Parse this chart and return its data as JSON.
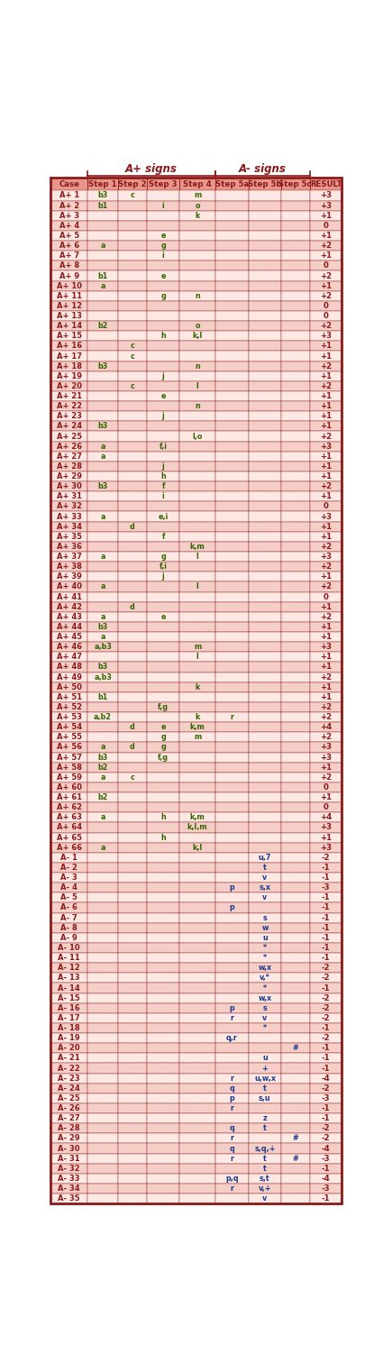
{
  "title_aplus": "A+ signs",
  "title_aminus": "A- signs",
  "col_headers": [
    "Case",
    "Step 1",
    "Step 2",
    "Step 3",
    "Step 4",
    "Step 5a",
    "Step 5b",
    "Step 5c",
    "RESULT"
  ],
  "bg_color_header": "#e8968a",
  "bg_color_even": "#fde8e4",
  "bg_color_odd": "#f5cec8",
  "border_color": "#8b1a1a",
  "text_color_case": "#8b1a1a",
  "text_color_green": "#336600",
  "text_color_blue": "#1a3a8b",
  "rows": [
    [
      "A+ 1",
      "b3",
      "c",
      "",
      "m",
      "",
      "",
      "",
      "+3"
    ],
    [
      "A+ 2",
      "b1",
      "",
      "i",
      "o",
      "",
      "",
      "",
      "+3"
    ],
    [
      "A+ 3",
      "",
      "",
      "",
      "k",
      "",
      "",
      "",
      "+1"
    ],
    [
      "A+ 4",
      "",
      "",
      "",
      "",
      "",
      "",
      "",
      "0"
    ],
    [
      "A+ 5",
      "",
      "",
      "e",
      "",
      "",
      "",
      "",
      "+1"
    ],
    [
      "A+ 6",
      "a",
      "",
      "g",
      "",
      "",
      "",
      "",
      "+2"
    ],
    [
      "A+ 7",
      "",
      "",
      "i",
      "",
      "",
      "",
      "",
      "+1"
    ],
    [
      "A+ 8",
      "",
      "",
      "",
      "",
      "",
      "",
      "",
      "0"
    ],
    [
      "A+ 9",
      "b1",
      "",
      "e",
      "",
      "",
      "",
      "",
      "+2"
    ],
    [
      "A+ 10",
      "a",
      "",
      "",
      "",
      "",
      "",
      "",
      "+1"
    ],
    [
      "A+ 11",
      "",
      "",
      "g",
      "n",
      "",
      "",
      "",
      "+2"
    ],
    [
      "A+ 12",
      "",
      "",
      "",
      "",
      "",
      "",
      "",
      "0"
    ],
    [
      "A+ 13",
      "",
      "",
      "",
      "",
      "",
      "",
      "",
      "0"
    ],
    [
      "A+ 14",
      "b2",
      "",
      "",
      "o",
      "",
      "",
      "",
      "+2"
    ],
    [
      "A+ 15",
      "",
      "",
      "h",
      "k,l",
      "",
      "",
      "",
      "+3"
    ],
    [
      "A+ 16",
      "",
      "c",
      "",
      "",
      "",
      "",
      "",
      "+1"
    ],
    [
      "A+ 17",
      "",
      "c",
      "",
      "",
      "",
      "",
      "",
      "+1"
    ],
    [
      "A+ 18",
      "b3",
      "",
      "",
      "n",
      "",
      "",
      "",
      "+2"
    ],
    [
      "A+ 19",
      "",
      "",
      "j",
      "",
      "",
      "",
      "",
      "+1"
    ],
    [
      "A+ 20",
      "",
      "c",
      "",
      "l",
      "",
      "",
      "",
      "+2"
    ],
    [
      "A+ 21",
      "",
      "",
      "e",
      "",
      "",
      "",
      "",
      "+1"
    ],
    [
      "A+ 22",
      "",
      "",
      "",
      "n",
      "",
      "",
      "",
      "+1"
    ],
    [
      "A+ 23",
      "",
      "",
      "j",
      "",
      "",
      "",
      "",
      "+1"
    ],
    [
      "A+ 24",
      "b3",
      "",
      "",
      "",
      "",
      "",
      "",
      "+1"
    ],
    [
      "A+ 25",
      "",
      "",
      "",
      "l,o",
      "",
      "",
      "",
      "+2"
    ],
    [
      "A+ 26",
      "a",
      "",
      "f,i",
      "",
      "",
      "",
      "",
      "+3"
    ],
    [
      "A+ 27",
      "a",
      "",
      "",
      "",
      "",
      "",
      "",
      "+1"
    ],
    [
      "A+ 28",
      "",
      "",
      "j",
      "",
      "",
      "",
      "",
      "+1"
    ],
    [
      "A+ 29",
      "",
      "",
      "h",
      "",
      "",
      "",
      "",
      "+1"
    ],
    [
      "A+ 30",
      "b3",
      "",
      "f",
      "",
      "",
      "",
      "",
      "+2"
    ],
    [
      "A+ 31",
      "",
      "",
      "i",
      "",
      "",
      "",
      "",
      "+1"
    ],
    [
      "A+ 32",
      "",
      "",
      "",
      "",
      "",
      "",
      "",
      "0"
    ],
    [
      "A+ 33",
      "a",
      "",
      "e,i",
      "",
      "",
      "",
      "",
      "+3"
    ],
    [
      "A+ 34",
      "",
      "d",
      "",
      "",
      "",
      "",
      "",
      "+1"
    ],
    [
      "A+ 35",
      "",
      "",
      "f",
      "",
      "",
      "",
      "",
      "+1"
    ],
    [
      "A+ 36",
      "",
      "",
      "",
      "k,m",
      "",
      "",
      "",
      "+2"
    ],
    [
      "A+ 37",
      "a",
      "",
      "g",
      "l",
      "",
      "",
      "",
      "+3"
    ],
    [
      "A+ 38",
      "",
      "",
      "f,i",
      "",
      "",
      "",
      "",
      "+2"
    ],
    [
      "A+ 39",
      "",
      "",
      "j",
      "",
      "",
      "",
      "",
      "+1"
    ],
    [
      "A+ 40",
      "a",
      "",
      "",
      "l",
      "",
      "",
      "",
      "+2"
    ],
    [
      "A+ 41",
      "",
      "",
      "",
      "",
      "",
      "",
      "",
      "0"
    ],
    [
      "A+ 42",
      "",
      "d",
      "",
      "",
      "",
      "",
      "",
      "+1"
    ],
    [
      "A+ 43",
      "a",
      "",
      "e",
      "",
      "",
      "",
      "",
      "+2"
    ],
    [
      "A+ 44",
      "b3",
      "",
      "",
      "",
      "",
      "",
      "",
      "+1"
    ],
    [
      "A+ 45",
      "a",
      "",
      "",
      "",
      "",
      "",
      "",
      "+1"
    ],
    [
      "A+ 46",
      "a,b3",
      "",
      "",
      "m",
      "",
      "",
      "",
      "+3"
    ],
    [
      "A+ 47",
      "",
      "",
      "",
      "l",
      "",
      "",
      "",
      "+1"
    ],
    [
      "A+ 48",
      "b3",
      "",
      "",
      "",
      "",
      "",
      "",
      "+1"
    ],
    [
      "A+ 49",
      "a,b3",
      "",
      "",
      "",
      "",
      "",
      "",
      "+2"
    ],
    [
      "A+ 50",
      "",
      "",
      "",
      "k",
      "",
      "",
      "",
      "+1"
    ],
    [
      "A+ 51",
      "b1",
      "",
      "",
      "",
      "",
      "",
      "",
      "+1"
    ],
    [
      "A+ 52",
      "",
      "",
      "f,g",
      "",
      "",
      "",
      "",
      "+2"
    ],
    [
      "A+ 53",
      "a,b2",
      "",
      "",
      "k",
      "r",
      "",
      "",
      "+2"
    ],
    [
      "A+ 54",
      "",
      "d",
      "e",
      "k,m",
      "",
      "",
      "",
      "+4"
    ],
    [
      "A+ 55",
      "",
      "",
      "g",
      "m",
      "",
      "",
      "",
      "+2"
    ],
    [
      "A+ 56",
      "a",
      "d",
      "g",
      "",
      "",
      "",
      "",
      "+3"
    ],
    [
      "A+ 57",
      "b3",
      "",
      "f,g",
      "",
      "",
      "",
      "",
      "+3"
    ],
    [
      "A+ 58",
      "b2",
      "",
      "",
      "",
      "",
      "",
      "",
      "+1"
    ],
    [
      "A+ 59",
      "a",
      "c",
      "",
      "",
      "",
      "",
      "",
      "+2"
    ],
    [
      "A+ 60",
      "",
      "",
      "",
      "",
      "",
      "",
      "",
      "0"
    ],
    [
      "A+ 61",
      "b2",
      "",
      "",
      "",
      "",
      "",
      "",
      "+1"
    ],
    [
      "A+ 62",
      "",
      "",
      "",
      "",
      "",
      "",
      "",
      "0"
    ],
    [
      "A+ 63",
      "a",
      "",
      "h",
      "k,m",
      "",
      "",
      "",
      "+4"
    ],
    [
      "A+ 64",
      "",
      "",
      "",
      "k,l,m",
      "",
      "",
      "",
      "+3"
    ],
    [
      "A+ 65",
      "",
      "",
      "h",
      "",
      "",
      "",
      "",
      "+1"
    ],
    [
      "A+ 66",
      "a",
      "",
      "",
      "k,l",
      "",
      "",
      "",
      "+3"
    ],
    [
      "A- 1",
      "",
      "",
      "",
      "",
      "",
      "u,7",
      "",
      "-2"
    ],
    [
      "A- 2",
      "",
      "",
      "",
      "",
      "",
      "t",
      "",
      "-1"
    ],
    [
      "A- 3",
      "",
      "",
      "",
      "",
      "",
      "v",
      "",
      "-1"
    ],
    [
      "A- 4",
      "",
      "",
      "",
      "",
      "p",
      "s,x",
      "",
      "-3"
    ],
    [
      "A- 5",
      "",
      "",
      "",
      "",
      "",
      "v",
      "",
      "-1"
    ],
    [
      "A- 6",
      "",
      "",
      "",
      "",
      "p",
      "",
      "",
      "-1"
    ],
    [
      "A- 7",
      "",
      "",
      "",
      "",
      "",
      "s",
      "",
      "-1"
    ],
    [
      "A- 8",
      "",
      "",
      "",
      "",
      "",
      "w",
      "",
      "-1"
    ],
    [
      "A- 9",
      "",
      "",
      "",
      "",
      "",
      "u",
      "",
      "-1"
    ],
    [
      "A- 10",
      "",
      "",
      "",
      "",
      "",
      "*",
      "",
      "-1"
    ],
    [
      "A- 11",
      "",
      "",
      "",
      "",
      "",
      "*",
      "",
      "-1"
    ],
    [
      "A- 12",
      "",
      "",
      "",
      "",
      "",
      "w,x",
      "",
      "-2"
    ],
    [
      "A- 13",
      "",
      "",
      "",
      "",
      "",
      "v,*",
      "",
      "-2"
    ],
    [
      "A- 14",
      "",
      "",
      "",
      "",
      "",
      "*",
      "",
      "-1"
    ],
    [
      "A- 15",
      "",
      "",
      "",
      "",
      "",
      "w,x",
      "",
      "-2"
    ],
    [
      "A- 16",
      "",
      "",
      "",
      "",
      "p",
      "s",
      "",
      "-2"
    ],
    [
      "A- 17",
      "",
      "",
      "",
      "",
      "r",
      "v",
      "",
      "-2"
    ],
    [
      "A- 18",
      "",
      "",
      "",
      "",
      "",
      "*",
      "",
      "-1"
    ],
    [
      "A- 19",
      "",
      "",
      "",
      "",
      "q,r",
      "",
      "",
      "-2"
    ],
    [
      "A- 20",
      "",
      "",
      "",
      "",
      "",
      "",
      "#",
      "-1"
    ],
    [
      "A- 21",
      "",
      "",
      "",
      "",
      "",
      "u",
      "",
      "-1"
    ],
    [
      "A- 22",
      "",
      "",
      "",
      "",
      "",
      "+",
      "",
      "-1"
    ],
    [
      "A- 23",
      "",
      "",
      "",
      "",
      "r",
      "u,w,x",
      "",
      "-4"
    ],
    [
      "A- 24",
      "",
      "",
      "",
      "",
      "q",
      "t",
      "",
      "-2"
    ],
    [
      "A- 25",
      "",
      "",
      "",
      "",
      "p",
      "s,u",
      "",
      "-3"
    ],
    [
      "A- 26",
      "",
      "",
      "",
      "",
      "r",
      "",
      "",
      "-1"
    ],
    [
      "A- 27",
      "",
      "",
      "",
      "",
      "",
      "z",
      "",
      "-1"
    ],
    [
      "A- 28",
      "",
      "",
      "",
      "",
      "q",
      "t",
      "",
      "-2"
    ],
    [
      "A- 29",
      "",
      "",
      "",
      "",
      "r",
      "",
      "#",
      "-2"
    ],
    [
      "A- 30",
      "",
      "",
      "",
      "",
      "q",
      "s,q,+",
      "",
      "-4"
    ],
    [
      "A- 31",
      "",
      "",
      "",
      "",
      "r",
      "t",
      "#",
      "-3"
    ],
    [
      "A- 32",
      "",
      "",
      "",
      "",
      "",
      "t",
      "",
      "-1"
    ],
    [
      "A- 33",
      "",
      "",
      "",
      "",
      "p,q",
      "s,t",
      "",
      "-4"
    ],
    [
      "A- 34",
      "",
      "",
      "",
      "",
      "r",
      "v,+",
      "",
      "-3"
    ],
    [
      "A- 35",
      "",
      "",
      "",
      "",
      "",
      "v",
      "",
      "-1"
    ]
  ]
}
